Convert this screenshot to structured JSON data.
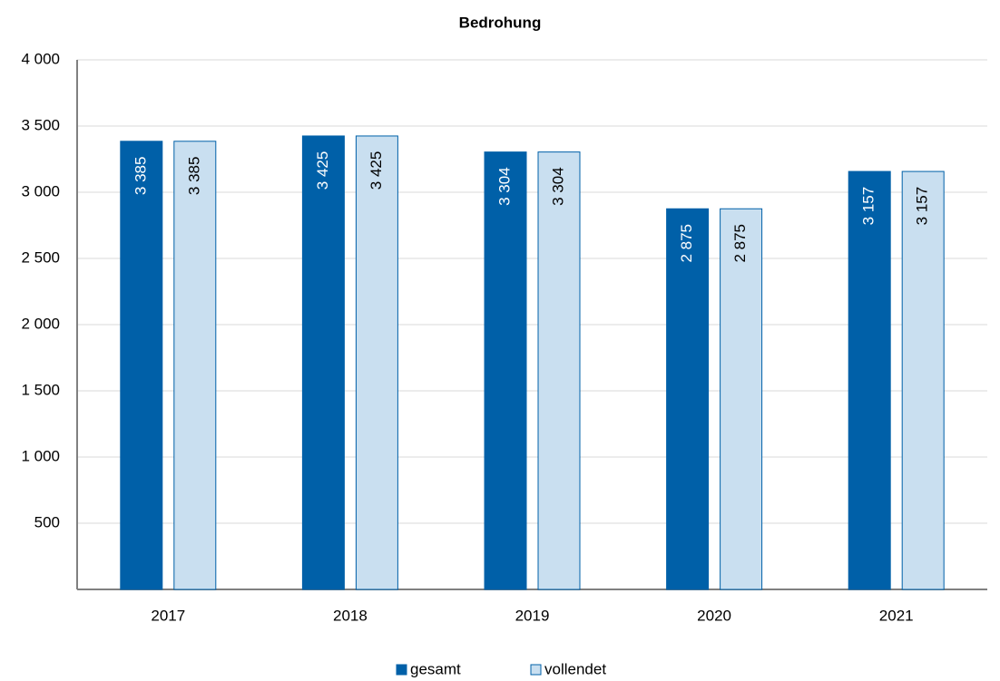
{
  "chart_data": {
    "type": "bar",
    "title": "Bedrohung",
    "categories": [
      "2017",
      "2018",
      "2019",
      "2020",
      "2021"
    ],
    "series": [
      {
        "name": "gesamt",
        "color": "#0060a8",
        "values": [
          3385,
          3425,
          3304,
          2875,
          3157
        ],
        "value_labels": [
          "3 385",
          "3 425",
          "3 304",
          "2 875",
          "3 157"
        ]
      },
      {
        "name": "vollendet",
        "color": "#c9dff0",
        "values": [
          3385,
          3425,
          3304,
          2875,
          3157
        ],
        "value_labels": [
          "3 385",
          "3 425",
          "3 304",
          "2 875",
          "3 157"
        ]
      }
    ],
    "ylim": [
      0,
      4000
    ],
    "yticks": [
      500,
      {
        "value": 1000,
        "label": "1 000"
      },
      {
        "value": 1500,
        "label": "1 500"
      },
      {
        "value": 2000,
        "label": "2 000"
      },
      {
        "value": 2500,
        "label": "2 500"
      },
      {
        "value": 3000,
        "label": "3 000"
      },
      {
        "value": 3500,
        "label": "3 500"
      },
      {
        "value": 4000,
        "label": "4 000"
      }
    ],
    "grid": true,
    "legend": "bottom"
  }
}
